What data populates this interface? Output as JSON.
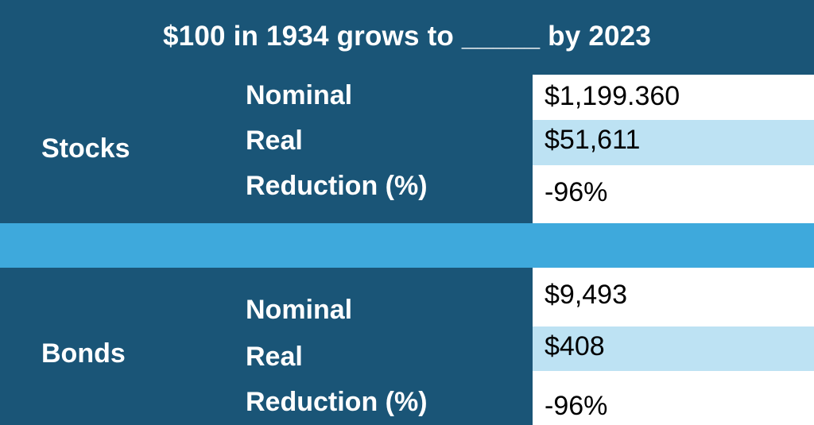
{
  "title": "$100 in 1934 grows to _____ by 2023",
  "stocks": {
    "label": "Stocks",
    "rows": [
      {
        "label": "Nominal",
        "value": "$1,199.360"
      },
      {
        "label": "Real",
        "value": "$51,611"
      },
      {
        "label": "Reduction (%)",
        "value": "-96%"
      }
    ]
  },
  "bonds": {
    "label": "Bonds",
    "rows": [
      {
        "label": "Nominal",
        "value": "$9,493"
      },
      {
        "label": "Real",
        "value": "$408"
      },
      {
        "label": "Reduction (%)",
        "value": "-96%"
      }
    ]
  },
  "colors": {
    "dark_background": "#1a5577",
    "separator_band": "#3ea9dc",
    "highlight_cell": "#bde2f3",
    "value_cell": "#ffffff"
  }
}
